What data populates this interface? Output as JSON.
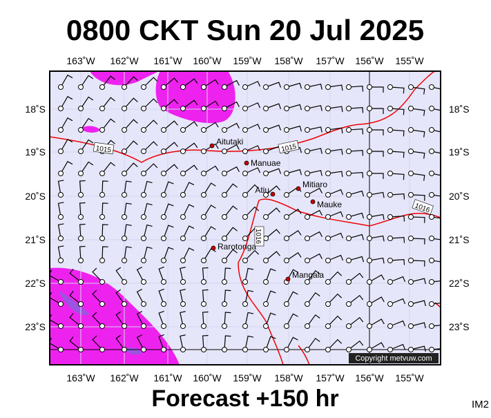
{
  "header": {
    "title": "0800 CKT Sun 20 Jul 2025"
  },
  "map": {
    "lon_labels": [
      "163˚W",
      "162˚W",
      "161˚W",
      "160˚W",
      "159˚W",
      "158˚W",
      "157˚W",
      "156˚W",
      "155˚W"
    ],
    "lat_labels": [
      "18˚S",
      "19˚S",
      "20˚S",
      "21˚S",
      "22˚S",
      "23˚S"
    ],
    "places": [
      {
        "label": "Aitutaki"
      },
      {
        "label": "Manuae"
      },
      {
        "label": "Mitiaro"
      },
      {
        "label": "Atiu"
      },
      {
        "label": "Mauke"
      },
      {
        "label": "Rarotonga"
      },
      {
        "label": "Mangaia"
      }
    ],
    "isobar_labels": [
      "1015",
      "1015",
      "1016",
      "1016"
    ],
    "copyright": "Copyright metvuw.com"
  },
  "footer": {
    "forecast": "Forecast +150 hr",
    "code": "IM2"
  }
}
